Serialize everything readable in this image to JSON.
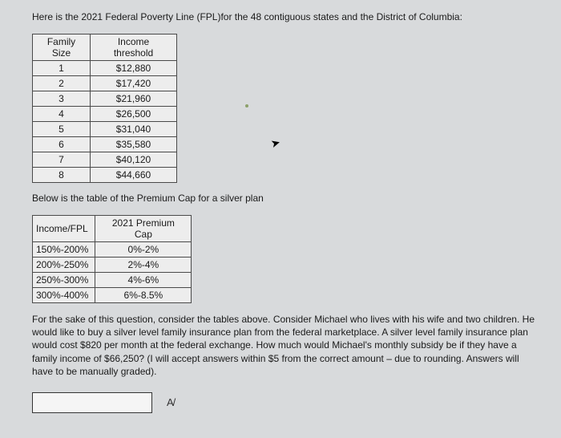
{
  "intro": "Here is the 2021 Federal Poverty Line (FPL)for the 48 contiguous states and the District of Columbia:",
  "fpl_table": {
    "columns": [
      "Family Size",
      "Income threshold"
    ],
    "rows": [
      [
        "1",
        "$12,880"
      ],
      [
        "2",
        "$17,420"
      ],
      [
        "3",
        "$21,960"
      ],
      [
        "4",
        "$26,500"
      ],
      [
        "5",
        "$31,040"
      ],
      [
        "6",
        "$35,580"
      ],
      [
        "7",
        "$40,120"
      ],
      [
        "8",
        "$44,660"
      ]
    ]
  },
  "mid_text": "Below is the table of the Premium Cap for a silver plan",
  "pcap_table": {
    "columns": [
      "Income/FPL",
      "2021 Premium Cap"
    ],
    "rows": [
      [
        "150%-200%",
        "0%-2%"
      ],
      [
        "200%-250%",
        "2%-4%"
      ],
      [
        "250%-300%",
        "4%-6%"
      ],
      [
        "300%-400%",
        "6%-8.5%"
      ]
    ]
  },
  "question": "For the sake of this question, consider the tables above. Consider Michael who lives with his wife and two children. He would like to buy a silver level family insurance plan from the federal marketplace. A silver level family insurance plan would cost $820 per month at the federal exchange. How much would Michael's monthly subsidy be if they have a family income of $66,250?  (I will accept answers within $5 from the correct amount – due to rounding. Answers will have to be manually graded).",
  "answer": {
    "value": "",
    "placeholder": ""
  },
  "formula_icon_text": "A/"
}
